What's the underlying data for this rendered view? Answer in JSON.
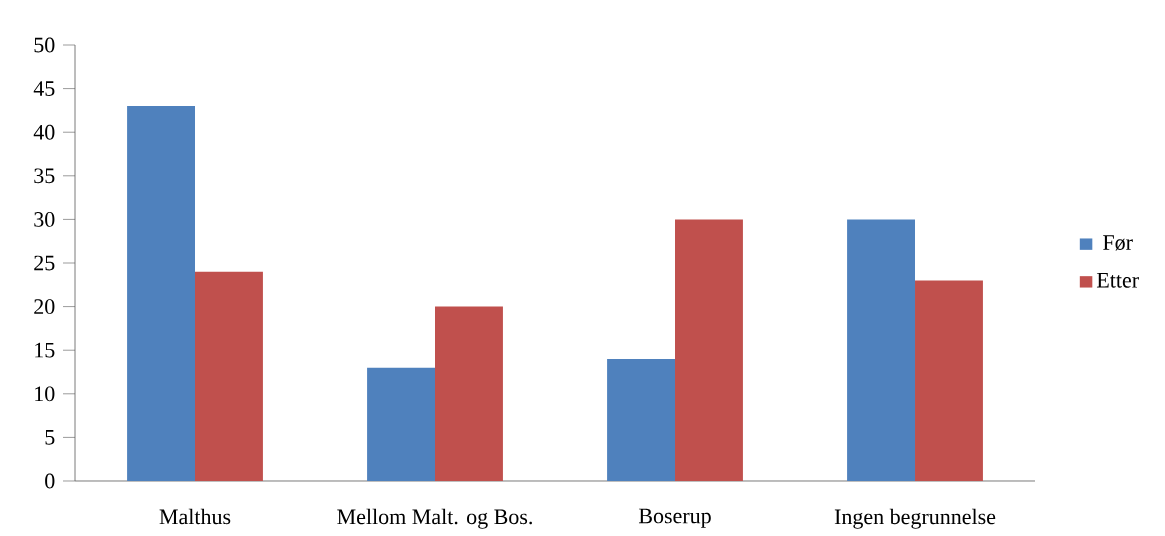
{
  "chart_data": {
    "type": "bar",
    "categories": [
      "Malthus",
      "Mellom Malt. og Bos.",
      "Boserup",
      "Ingen begrunnelse"
    ],
    "series": [
      {
        "name": "Før",
        "color": "#4f81bd",
        "values": [
          43,
          13,
          14,
          30
        ]
      },
      {
        "name": "Etter",
        "color": "#c0504d",
        "values": [
          24,
          20,
          30,
          23
        ]
      }
    ],
    "ylim": [
      0,
      50
    ],
    "yticks": [
      0,
      5,
      10,
      15,
      20,
      25,
      30,
      35,
      40,
      45,
      50
    ],
    "legend": "right"
  }
}
